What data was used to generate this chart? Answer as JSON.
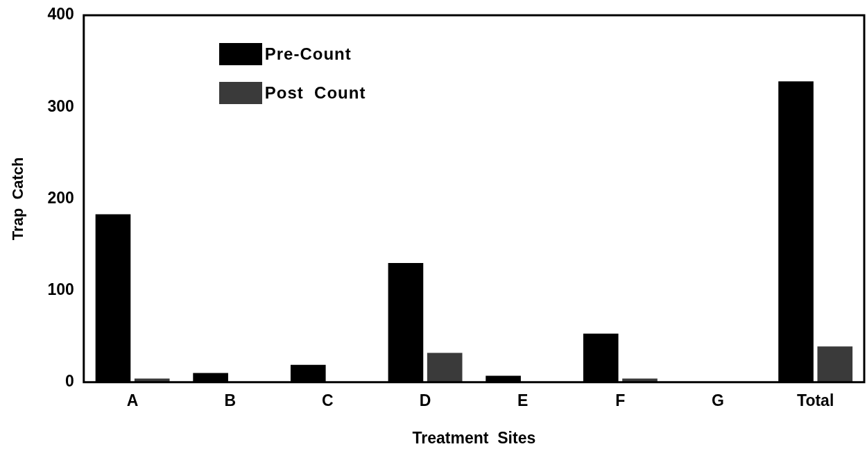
{
  "chart_data": {
    "type": "bar",
    "xlabel": "Treatment  Sites",
    "ylabel": "Trap  Catch",
    "categories": [
      "A",
      "B",
      "C",
      "D",
      "E",
      "F",
      "G",
      "Total"
    ],
    "series": [
      {
        "name": "Pre-Count",
        "color": "#000000",
        "values": [
          183,
          10,
          19,
          130,
          7,
          53,
          0,
          328
        ]
      },
      {
        "name": "Post  Count",
        "color": "#3a3a3a",
        "values": [
          4,
          0,
          0,
          32,
          0,
          4,
          0,
          39
        ]
      }
    ],
    "ylim": [
      0,
      400
    ],
    "yticks": [
      0,
      100,
      200,
      300,
      400
    ],
    "grid": false,
    "legend": "top left"
  }
}
